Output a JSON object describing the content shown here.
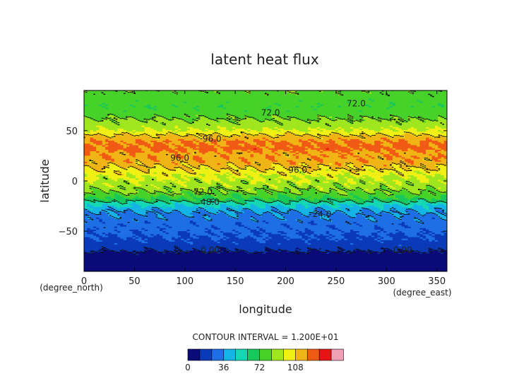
{
  "chart_data": {
    "type": "heatmap",
    "title": "latent heat flux",
    "xlabel": "longitude",
    "ylabel": "latitude",
    "x_unit_label": "(degree_east)",
    "y_unit_label": "(degree_north)",
    "xlim": [
      0,
      360
    ],
    "ylim": [
      -90,
      90
    ],
    "x_ticks": [
      0,
      50,
      100,
      150,
      200,
      250,
      300,
      350
    ],
    "y_ticks": [
      50,
      0,
      -50
    ],
    "contour_interval_text": "CONTOUR INTERVAL = 1.200E+01",
    "contour_interval": 12,
    "colorbar": {
      "levels": [
        0,
        12,
        24,
        36,
        48,
        60,
        72,
        84,
        96,
        108,
        120
      ],
      "tick_labels": [
        "0",
        "36",
        "72",
        "108"
      ],
      "colors": [
        "#0a0a78",
        "#0a3ab8",
        "#1e6ee6",
        "#14b4e6",
        "#14d8b4",
        "#18c85a",
        "#46d228",
        "#a0e61e",
        "#f0f014",
        "#f0b414",
        "#f05a14",
        "#e61414",
        "#f0a0b4"
      ]
    },
    "zonal_profile": {
      "lat": [
        -90,
        -75,
        -70,
        -64,
        -58,
        -50,
        -40,
        -33,
        -28,
        -23,
        -20,
        -17,
        -12,
        -7,
        -2,
        5,
        10,
        15,
        20,
        25,
        28,
        32,
        36,
        40,
        45,
        50,
        56,
        62,
        68,
        74,
        80,
        86,
        90
      ],
      "value": [
        -10,
        -8,
        0,
        6,
        10,
        14,
        18,
        22,
        28,
        40,
        50,
        58,
        70,
        76,
        80,
        85,
        92,
        98,
        104,
        106,
        104,
        112,
        110,
        108,
        98,
        86,
        78,
        72,
        66,
        62,
        64,
        68,
        70
      ]
    },
    "contour_labels": [
      {
        "text": "72.0",
        "lon": 185,
        "lat": 68
      },
      {
        "text": "72.0",
        "lon": 270,
        "lat": 77
      },
      {
        "text": "96.0",
        "lon": 127,
        "lat": 42
      },
      {
        "text": "96.0",
        "lon": 95,
        "lat": 23
      },
      {
        "text": "96.0",
        "lon": 212,
        "lat": 11
      },
      {
        "text": "72.0",
        "lon": 118,
        "lat": -11
      },
      {
        "text": "48.0",
        "lon": 125,
        "lat": -21
      },
      {
        "text": "24.0",
        "lon": 236,
        "lat": -33
      },
      {
        "text": "0.00",
        "lon": 125,
        "lat": -69
      },
      {
        "text": "0.00",
        "lon": 316,
        "lat": -69
      }
    ]
  }
}
